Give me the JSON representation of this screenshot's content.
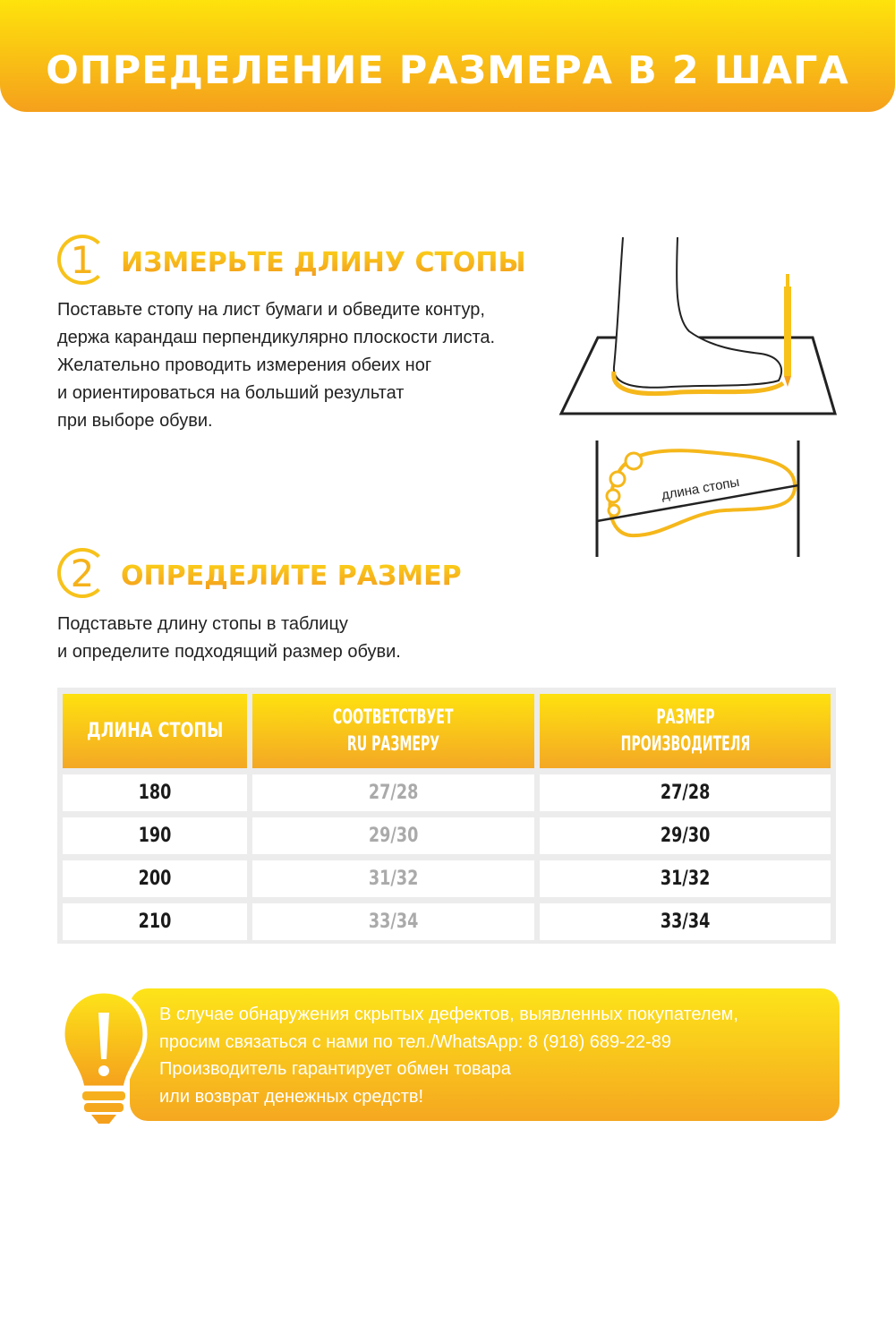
{
  "header": {
    "title": "ОПРЕДЕЛЕНИЕ РАЗМЕРА В 2 ШАГА"
  },
  "step1": {
    "number": "1",
    "title": "ИЗМЕРЬТЕ ДЛИНУ СТОПЫ",
    "lines": [
      "Поставьте стопу на лист бумаги и обведите контур,",
      "держа карандаш перпендикулярно плоскости листа.",
      "Желательно проводить измерения обеих ног",
      "и ориентироваться на больший результат",
      "при выборе обуви."
    ]
  },
  "illustration": {
    "sole_label": "длина стопы"
  },
  "step2": {
    "number": "2",
    "title": "ОПРЕДЕЛИТЕ РАЗМЕР",
    "lines": [
      "Подставьте длину стопы в таблицу",
      "и определите подходящий размер обуви."
    ]
  },
  "table": {
    "headers": [
      [
        "ДЛИНА СТОПЫ"
      ],
      [
        "СООТВЕТСТВУЕТ",
        "RU РАЗМЕРУ"
      ],
      [
        "РАЗМЕР",
        "ПРОИЗВОДИТЕЛЯ"
      ]
    ],
    "rows": [
      [
        "180",
        "27/28",
        "27/28"
      ],
      [
        "190",
        "29/30",
        "29/30"
      ],
      [
        "200",
        "31/32",
        "31/32"
      ],
      [
        "210",
        "33/34",
        "33/34"
      ]
    ]
  },
  "notice": {
    "icon": "lightbulb-exclamation-icon",
    "lines": [
      "В случае обнаружения скрытых дефектов, выявленных покупателем,",
      "просим связаться с нами по тел./WhatsApp: 8 (918) 689-22-89",
      "Производитель гарантирует обмен товара",
      "или возврат денежных средств!"
    ]
  },
  "colors": {
    "accent_top": "#fee30c",
    "accent_bottom": "#f5a01c"
  }
}
